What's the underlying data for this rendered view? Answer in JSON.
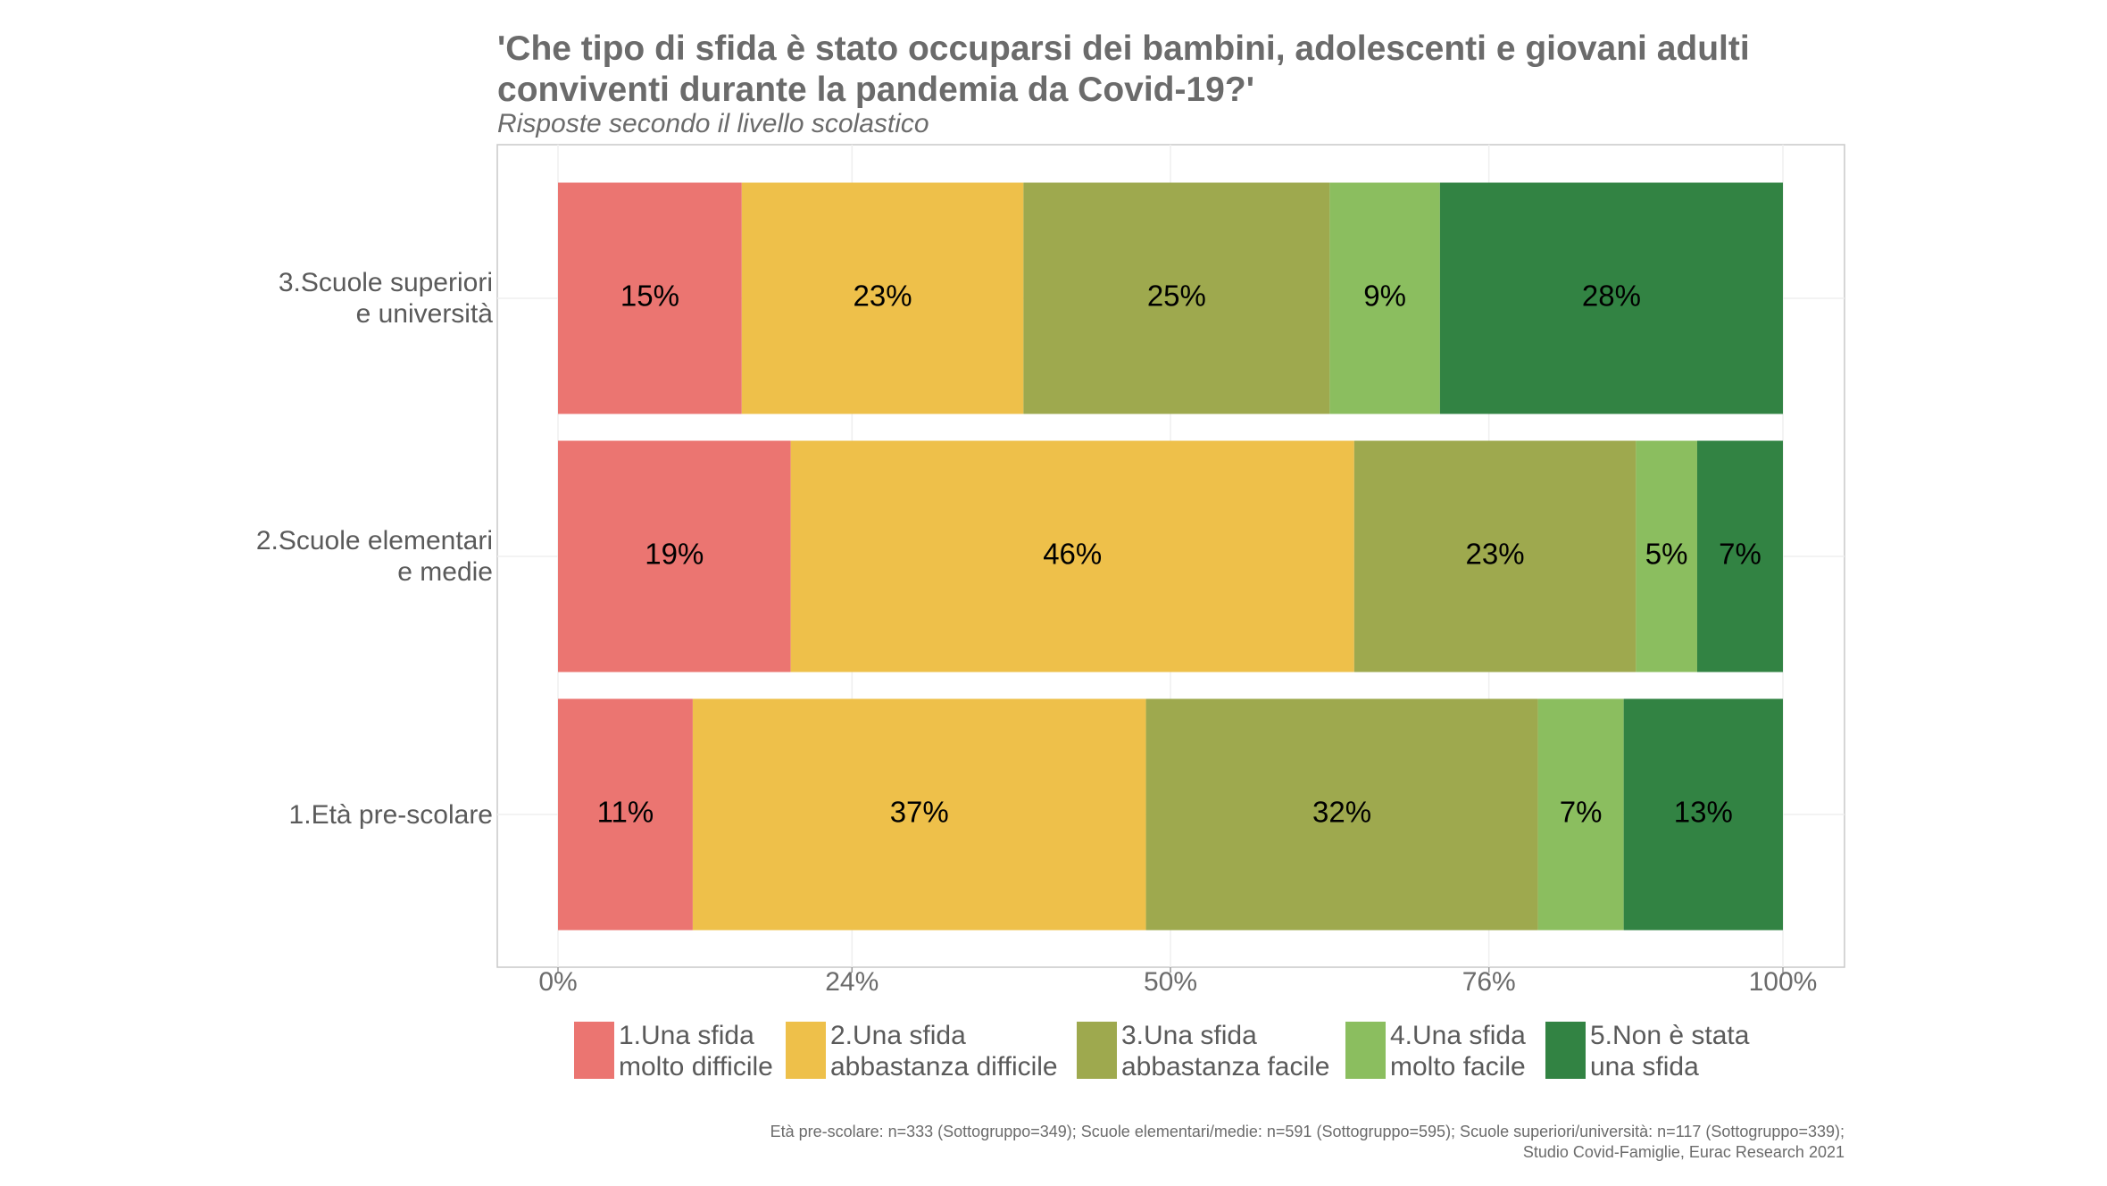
{
  "chart_data": {
    "type": "stacked-barh",
    "title": "'Che tipo di sfida è stato occuparsi dei bambini, adolescenti e giovani adulti\nconviventi durante la pandemia da Covid-19?'",
    "subtitle": "Risposte secondo il livello scolastico",
    "caption": "Età pre-scolare: n=333 (Sottogruppo=349); Scuole elementari/medie: n=591 (Sottogruppo=595); Scuole superiori/università: n=117 (Sottogruppo=339);\nStudio Covid-Famiglie, Eurac Research 2021",
    "categories": [
      "1.Età pre-scolare",
      "2.Scuole elementari\ne medie",
      "3.Scuole superiori\ne università"
    ],
    "series": [
      {
        "name": "1.Una sfida\nmolto difficile",
        "color": "#EB7571",
        "values": [
          11,
          19,
          15
        ],
        "value_labels": [
          "11%",
          "19%",
          "15%"
        ]
      },
      {
        "name": "2.Una sfida\nabbastanza difficile",
        "color": "#EEC04A",
        "values": [
          37,
          46,
          23
        ],
        "value_labels": [
          "37%",
          "46%",
          "23%"
        ]
      },
      {
        "name": "3.Una sfida\nabbastanza facile",
        "color": "#9EA94E",
        "values": [
          32,
          23,
          25
        ],
        "value_labels": [
          "32%",
          "23%",
          "25%"
        ]
      },
      {
        "name": "4.Una sfida\nmolto facile",
        "color": "#8BBE5F",
        "values": [
          7,
          5,
          9
        ],
        "value_labels": [
          "7%",
          "5%",
          "9%"
        ]
      },
      {
        "name": "5.Non è stata\nuna sfida",
        "color": "#328343",
        "values": [
          13,
          7,
          28
        ],
        "value_labels": [
          "13%",
          "7%",
          "28%"
        ]
      }
    ],
    "xlim": [
      0,
      100
    ],
    "xticks": [
      {
        "value": 0,
        "label": "0%"
      },
      {
        "value": 24,
        "label": "24%"
      },
      {
        "value": 50,
        "label": "50%"
      },
      {
        "value": 76,
        "label": "76%"
      },
      {
        "value": 100,
        "label": "100%"
      }
    ],
    "grid": true,
    "legend": "bottom"
  }
}
